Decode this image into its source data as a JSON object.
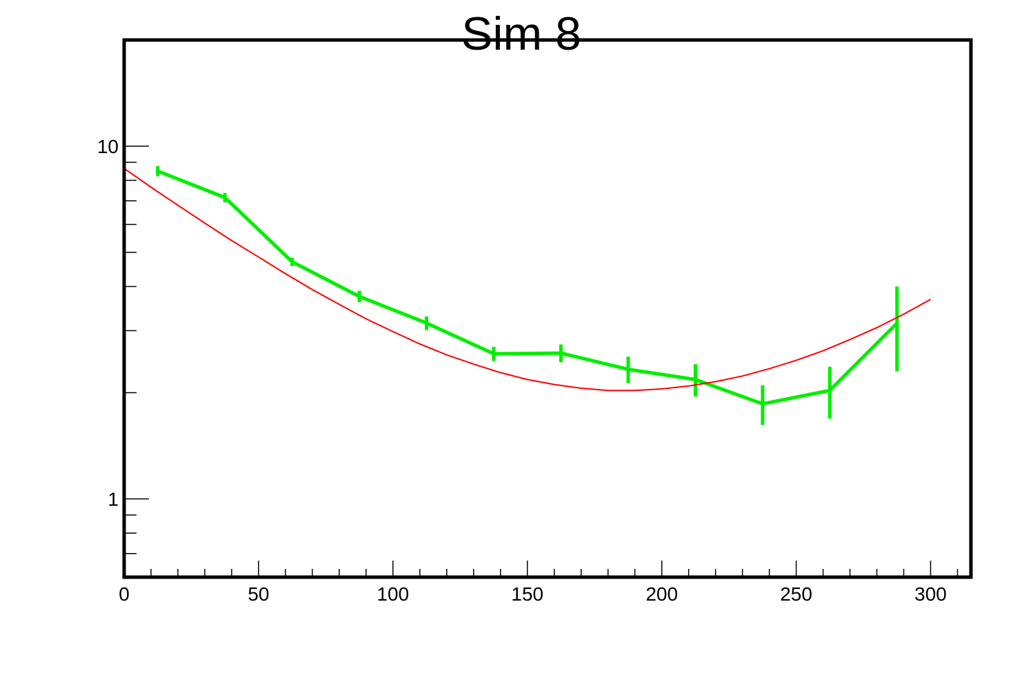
{
  "chart_data": {
    "type": "line",
    "title": "Sim 8",
    "xlabel": "",
    "ylabel": "",
    "xlim": [
      0,
      315
    ],
    "ylim": [
      0.6,
      20
    ],
    "yscale": "log",
    "grid": false,
    "x_ticks": [
      0,
      50,
      100,
      150,
      200,
      250,
      300
    ],
    "x_tick_labels": [
      "0",
      "50",
      "100",
      "150",
      "200",
      "250",
      "300"
    ],
    "y_ticks": [
      1,
      10
    ],
    "y_tick_labels": [
      "1",
      "10"
    ],
    "series": [
      {
        "color": "#00ee00",
        "x": [
          12.5,
          37.5,
          62.5,
          87.5,
          112.5,
          137.5,
          162.5,
          187.5,
          212.5,
          237.5,
          262.5,
          287.5
        ],
        "y": [
          8.5,
          7.15,
          4.7,
          3.75,
          3.15,
          2.58,
          2.59,
          2.33,
          2.18,
          1.86,
          2.03,
          3.15
        ],
        "y_err": [
          0.28,
          0.22,
          0.13,
          0.14,
          0.14,
          0.12,
          0.15,
          0.2,
          0.23,
          0.24,
          0.34,
          0.85
        ]
      },
      {
        "color": "#ff0000",
        "x": [
          0,
          10,
          20,
          30,
          40,
          50,
          60,
          70,
          80,
          90,
          100,
          110,
          120,
          130,
          140,
          150,
          160,
          170,
          180,
          190,
          200,
          210,
          220,
          230,
          240,
          250,
          260,
          270,
          280,
          290,
          300
        ],
        "y": [
          8.65,
          7.65,
          6.8,
          6.05,
          5.4,
          4.85,
          4.35,
          3.92,
          3.56,
          3.24,
          2.98,
          2.75,
          2.56,
          2.41,
          2.28,
          2.18,
          2.11,
          2.06,
          2.03,
          2.03,
          2.05,
          2.09,
          2.15,
          2.23,
          2.34,
          2.47,
          2.63,
          2.83,
          3.06,
          3.34,
          3.68
        ]
      }
    ]
  }
}
